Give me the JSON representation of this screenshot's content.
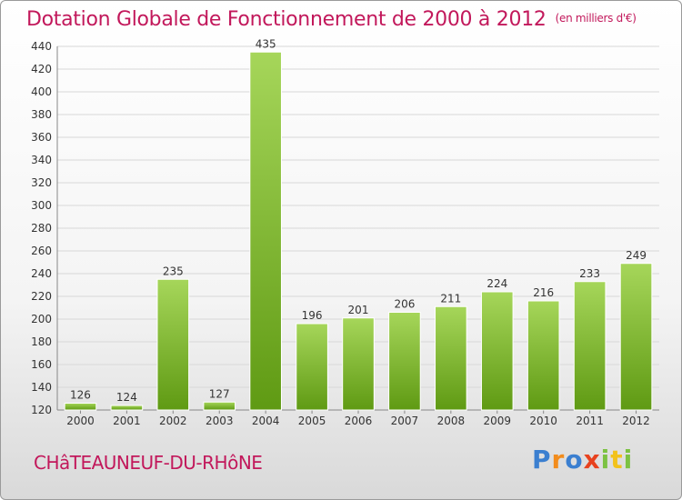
{
  "header": {
    "title": "Dotation Globale de Fonctionnement de 2000 à 2012",
    "subtitle": "(en milliers d'€)"
  },
  "footer": {
    "city": "CHâTEAUNEUF-DU-RHôNE",
    "logo_text": "Proxiti"
  },
  "colors": {
    "bar_light": "#a6d65a",
    "bar_dark": "#5f9a13",
    "grid": "#d8d8d8",
    "title": "#c2185b"
  },
  "chart_data": {
    "type": "bar",
    "title": "Dotation Globale de Fonctionnement de 2000 à 2012",
    "subtitle": "(en milliers d'€)",
    "categories": [
      "2000",
      "2001",
      "2002",
      "2003",
      "2004",
      "2005",
      "2006",
      "2007",
      "2008",
      "2009",
      "2010",
      "2011",
      "2012"
    ],
    "values": [
      126,
      124,
      235,
      127,
      435,
      196,
      201,
      206,
      211,
      224,
      216,
      233,
      249
    ],
    "ylim": [
      120,
      440
    ],
    "yticks": [
      120,
      140,
      160,
      180,
      200,
      220,
      240,
      260,
      280,
      300,
      320,
      340,
      360,
      380,
      400,
      420,
      440
    ],
    "grid": true,
    "data_labels": true
  }
}
